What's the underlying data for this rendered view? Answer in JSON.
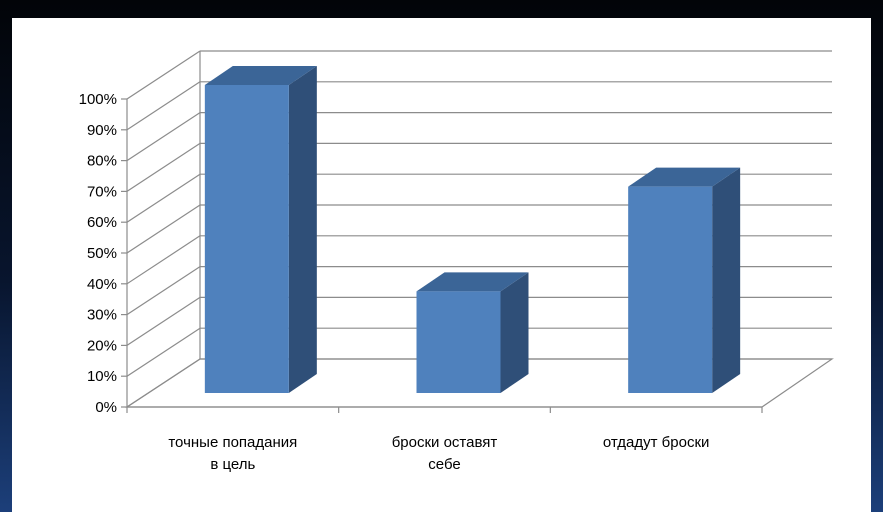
{
  "chart_data": {
    "type": "bar",
    "title": "",
    "xlabel": "",
    "ylabel": "",
    "ylim": [
      0,
      100
    ],
    "y_tick_labels": [
      "0%",
      "10%",
      "20%",
      "30%",
      "40%",
      "50%",
      "60%",
      "70%",
      "80%",
      "90%",
      "100%"
    ],
    "categories": [
      [
        "точные попадания",
        "в цель"
      ],
      [
        "броски оставят",
        "себе"
      ],
      [
        "отдадут броски"
      ]
    ],
    "values": [
      100,
      33,
      67
    ],
    "unit": "%",
    "grid": true,
    "legend": "none",
    "style": "3d-column",
    "colors": {
      "bar_front": "#4f81bd",
      "bar_side": "#2f4f78",
      "bar_top": "#3b6597",
      "grid": "#8c8c8c"
    }
  }
}
